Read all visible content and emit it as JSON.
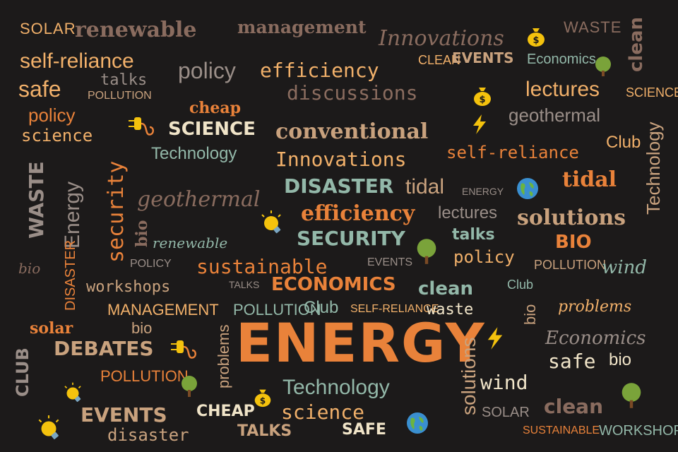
{
  "colors": {
    "background": "#1c1a1a",
    "orange": "#e9823a",
    "light_orange": "#f1b06a",
    "brown": "#8a6c5f",
    "tan": "#c9a27e",
    "teal": "#93b8a9",
    "cream": "#f0e4c8",
    "gray": "#9a8e88"
  },
  "words": {
    "solar_1": "SOLAR",
    "renewable_1": "renewable",
    "management_1": "management",
    "innovations_1": "Innovations",
    "waste_1": "WASTE",
    "clean_1": "clean",
    "self_reliance_1": "self-reliance",
    "talks_1": "talks",
    "policy_1": "policy",
    "efficiency_1": "efficiency",
    "clean_2": "CLEAN",
    "events_1": "EVENTS",
    "economics_1": "Economics",
    "safe_1": "safe",
    "pollution_1": "POLLUTION",
    "discussions_1": "discussions",
    "lectures_1": "lectures",
    "science_1": "SCIENCE",
    "cheap_1": "cheap",
    "policy_2": "policy",
    "geothermal_1": "geothermal",
    "science_2": "science",
    "science_3": "SCIENCE",
    "conventional_1": "conventional",
    "club_1": "Club",
    "technology_1": "Technology",
    "self_reliance_2": "self-reliance",
    "technology_2": "Technology",
    "innovations_2": "Innovations",
    "security_1": "security",
    "waste_2": "WASTE",
    "energy_1": "Energy",
    "disaster_1": "DISASTER",
    "tidal_1": "tidal",
    "energy_2": "ENERGY",
    "tidal_2": "tidal",
    "geothermal_2": "geothermal",
    "efficiency_2": "efficiency",
    "lectures_2": "lectures",
    "solutions_1": "solutions",
    "bio_1": "bio",
    "renewable_2": "renewable",
    "security_2": "SECURITY",
    "talks_2": "talks",
    "bio_2": "BIO",
    "policy_3": "policy",
    "bio_3": "bio",
    "disaster_2": "DISASTER",
    "policy_4": "POLICY",
    "sustainable_1": "sustainable",
    "events_2": "EVENTS",
    "pollution_2": "POLLUTION",
    "wind_1": "wind",
    "workshops_1": "workshops",
    "talks_3": "TALKS",
    "economics_2": "ECONOMICS",
    "clean_3": "clean",
    "club_2": "Club",
    "management_2": "MANAGEMENT",
    "pollution_3": "POLLUTION",
    "club_3": "Club",
    "self_reliance_3": "SELF-RELIANCE",
    "waste_3": "waste",
    "bio_4": "bio",
    "problems_1": "problems",
    "solar_2": "solar",
    "bio_5": "bio",
    "problems_2": "problems",
    "energy_main": "ENERGY",
    "solutions_2": "solutions",
    "economics_3": "Economics",
    "club_4": "CLUB",
    "debates_1": "DEBATES",
    "safe_2": "safe",
    "bio_6": "bio",
    "pollution_4": "POLLUTION",
    "technology_3": "Technology",
    "wind_2": "wind",
    "events_3": "EVENTS",
    "cheap_2": "CHEAP",
    "science_4": "science",
    "solar_3": "SOLAR",
    "clean_4": "clean",
    "disaster_3": "disaster",
    "talks_4": "TALKS",
    "safe_3": "SAFE",
    "sustainable_2": "SUSTAINABLE",
    "workshops_2": "WORKSHOPS"
  },
  "icons": {
    "money_bag": "money-bag-icon",
    "tree": "tree-icon",
    "plug": "plug-icon",
    "lightning": "lightning-icon",
    "globe": "globe-icon",
    "light_bulb": "light-bulb-icon"
  }
}
